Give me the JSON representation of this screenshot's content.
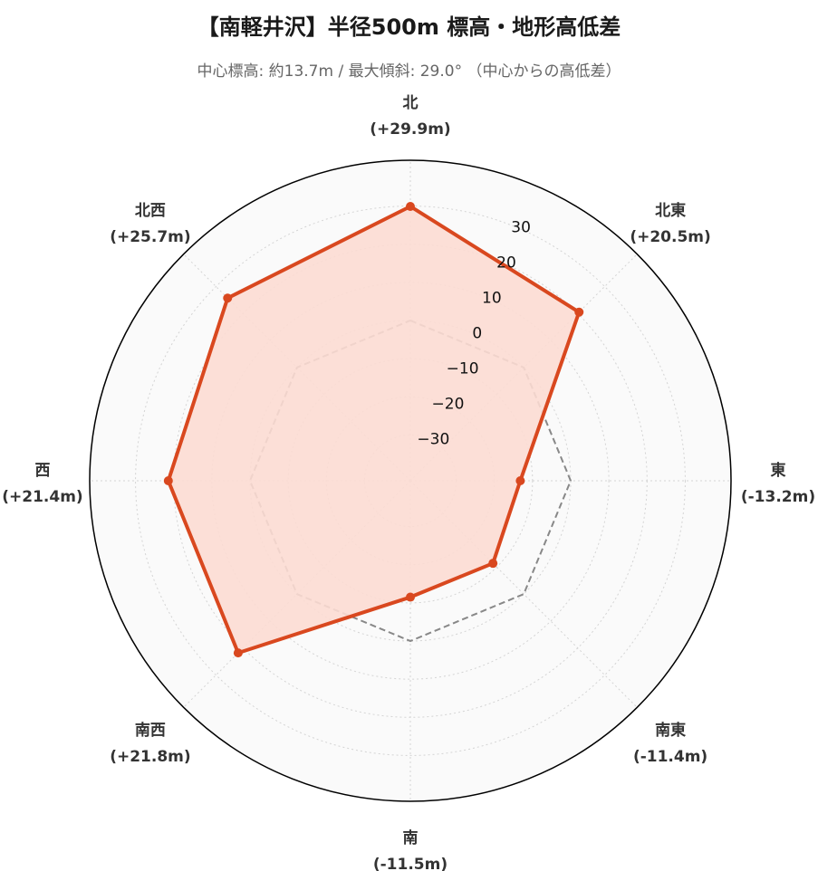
{
  "header": {
    "title": "【南軽井沢】半径500m 標高・地形高低差",
    "subtitle": "中心標高: 約13.7m / 最大傾斜: 29.0° （中心からの高低差）"
  },
  "chart_data": {
    "type": "radar",
    "title": "【南軽井沢】半径500m 標高・地形高低差",
    "subtitle": "中心標高: 約13.7m / 最大傾斜: 29.0° （中心からの高低差）",
    "axes": [
      {
        "name": "北",
        "value": 29.9,
        "label": "(+29.9m)"
      },
      {
        "name": "北東",
        "value": 20.5,
        "label": "(+20.5m)"
      },
      {
        "name": "東",
        "value": -13.2,
        "label": "(-13.2m)"
      },
      {
        "name": "南東",
        "value": -11.4,
        "label": "(-11.4m)"
      },
      {
        "name": "南",
        "value": -11.5,
        "label": "(-11.5m)"
      },
      {
        "name": "南西",
        "value": 21.8,
        "label": "(+21.8m)"
      },
      {
        "name": "西",
        "value": 21.4,
        "label": "(+21.4m)"
      },
      {
        "name": "北西",
        "value": 25.7,
        "label": "(+25.7m)"
      }
    ],
    "radial_ticks": [
      -30,
      -20,
      -10,
      0,
      10,
      20,
      30
    ],
    "radial_tick_labels": [
      "−30",
      "−20",
      "−10",
      "0",
      "10",
      "20",
      "30"
    ],
    "rlim": [
      -42,
      42
    ],
    "reference_value": 0,
    "grid": true,
    "colors": {
      "series_line": "#d9481f",
      "series_fill": "#fcdcd3",
      "reference_line": "#888888",
      "grid": "#d4d4d4",
      "background": "#fafafa",
      "outline": "#000000"
    }
  }
}
